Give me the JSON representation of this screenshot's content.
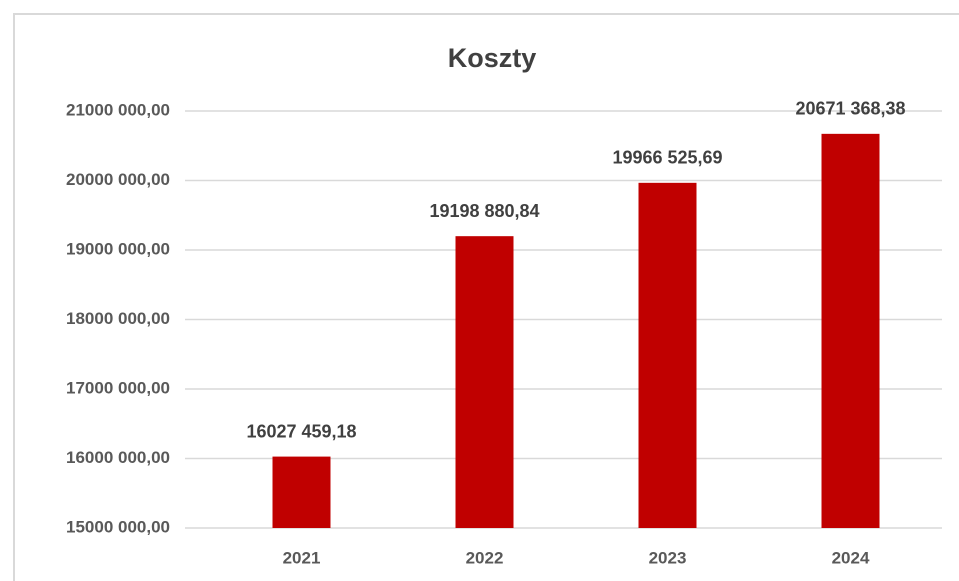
{
  "chart_data": {
    "type": "bar",
    "title": "Koszty",
    "categories": [
      "2021",
      "2022",
      "2023",
      "2024"
    ],
    "values": [
      16027459.18,
      19198880.84,
      19966525.69,
      20671368.38
    ],
    "value_labels": [
      "16027 459,18",
      "19198 880,84",
      "19966 525,69",
      "20671 368,38"
    ],
    "color": "#c00000",
    "ylim": [
      15000000,
      21000000
    ],
    "yticks": [
      {
        "value": 15000000,
        "label": "15000 000,00"
      },
      {
        "value": 16000000,
        "label": "16000 000,00"
      },
      {
        "value": 17000000,
        "label": "17000 000,00"
      },
      {
        "value": 18000000,
        "label": "18000 000,00"
      },
      {
        "value": 19000000,
        "label": "19000 000,00"
      },
      {
        "value": 20000000,
        "label": "20000 000,00"
      },
      {
        "value": 21000000,
        "label": "21000 000,00"
      }
    ],
    "grid": true
  }
}
